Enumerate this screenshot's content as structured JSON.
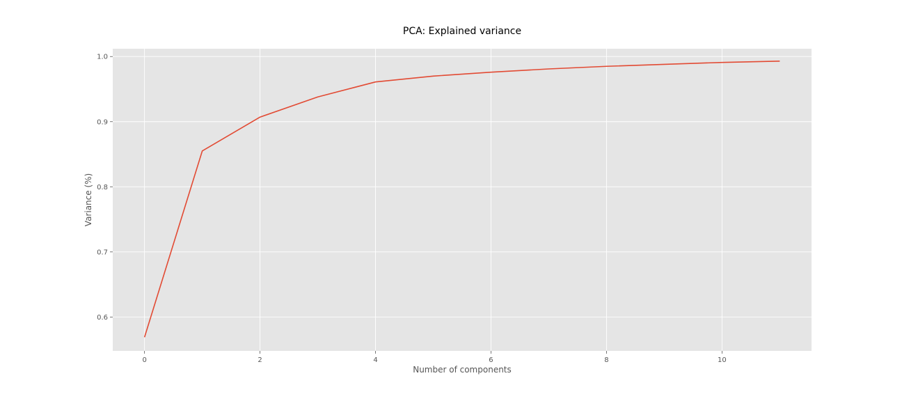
{
  "colors": {
    "plot_background": "#e5e5e5",
    "grid": "#ffffff",
    "line": "#e24a33",
    "text": "#555555"
  },
  "chart_data": {
    "type": "line",
    "title": "PCA: Explained variance",
    "xlabel": "Number of components",
    "ylabel": "Variance (%)",
    "x": [
      0,
      1,
      2,
      3,
      4,
      5,
      6,
      7,
      8,
      9,
      10,
      11
    ],
    "series": [
      {
        "values": [
          0.569,
          0.855,
          0.907,
          0.938,
          0.961,
          0.97,
          0.976,
          0.981,
          0.985,
          0.988,
          0.991,
          0.993
        ]
      }
    ],
    "xlim": [
      -0.55,
      11.55
    ],
    "ylim": [
      0.548,
      1.012
    ],
    "x_ticks": [
      "0",
      "2",
      "4",
      "6",
      "8",
      "10"
    ],
    "y_ticks": [
      "0.6",
      "0.7",
      "0.8",
      "0.9",
      "1.0"
    ],
    "grid": true,
    "legend": false
  }
}
